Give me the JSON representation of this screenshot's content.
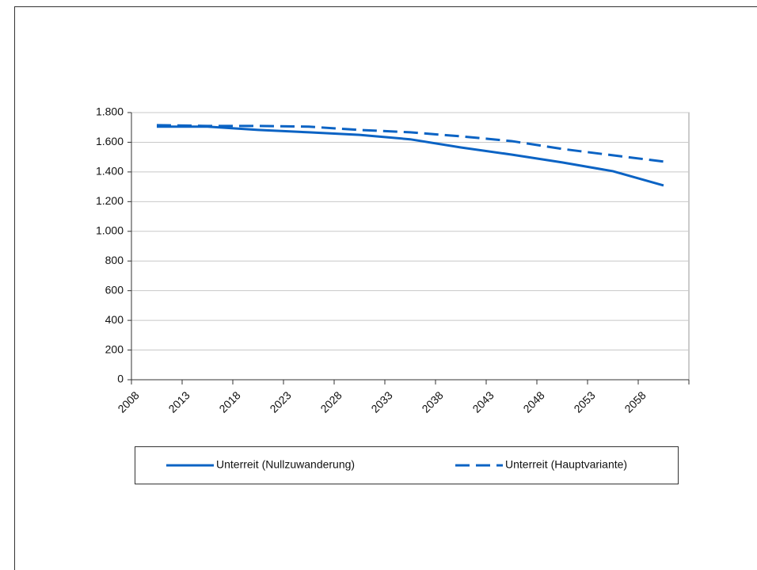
{
  "chart_data": {
    "type": "line",
    "x": [
      2010.5,
      2015.5,
      2020.5,
      2025.5,
      2030.5,
      2035.5,
      2040.5,
      2045.5,
      2050.5,
      2055.5,
      2060.5
    ],
    "series": [
      {
        "name": "Unterreit (Nullzuwanderung)",
        "color": "#0b63c4",
        "dash": "solid",
        "values": [
          1705,
          1705,
          1683,
          1667,
          1650,
          1620,
          1565,
          1517,
          1464,
          1405,
          1309
        ]
      },
      {
        "name": "Unterreit (Hauptvariante)",
        "color": "#0b63c4",
        "dash": "dashed",
        "values": [
          1715,
          1710,
          1710,
          1705,
          1683,
          1667,
          1640,
          1608,
          1555,
          1512,
          1470
        ]
      }
    ],
    "xlim": [
      2008,
      2063
    ],
    "xticks": [
      2008,
      2013,
      2018,
      2023,
      2028,
      2033,
      2038,
      2043,
      2048,
      2053,
      2058
    ],
    "ylim": [
      0,
      1800
    ],
    "yticks": [
      0,
      200,
      400,
      600,
      800,
      {
        "value": 1000,
        "label": "1.000"
      },
      {
        "value": 1200,
        "label": "1.200"
      },
      {
        "value": 1400,
        "label": "1.400"
      },
      {
        "value": 1600,
        "label": "1.600"
      },
      {
        "value": 1800,
        "label": "1.800"
      }
    ],
    "grid": true,
    "legend": "bottom"
  }
}
